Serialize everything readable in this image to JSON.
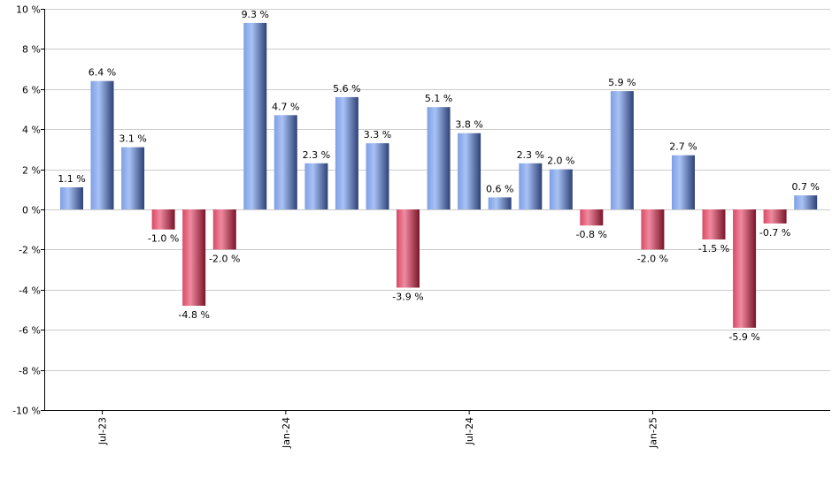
{
  "chart_data": {
    "type": "bar",
    "x": [
      "2023-06",
      "2023-07",
      "2023-08",
      "2023-09",
      "2023-10",
      "2023-11",
      "2023-12",
      "2024-01",
      "2024-02",
      "2024-03",
      "2024-04",
      "2024-05",
      "2024-06",
      "2024-07",
      "2024-08",
      "2024-09",
      "2024-10",
      "2024-11",
      "2024-12",
      "2025-01",
      "2025-02",
      "2025-03",
      "2025-04",
      "2025-05",
      "2025-06"
    ],
    "values": [
      1.1,
      6.4,
      3.1,
      -1.0,
      -4.8,
      -2.0,
      9.3,
      4.7,
      2.3,
      5.6,
      3.3,
      -3.9,
      5.1,
      3.8,
      0.6,
      2.3,
      2.0,
      -0.8,
      5.9,
      -2.0,
      2.7,
      -1.5,
      -5.9,
      -0.7,
      0.7
    ],
    "data_labels": [
      "1.1 %",
      "6.4 %",
      "3.1 %",
      "-1.0 %",
      "-4.8 %",
      "-2.0 %",
      "9.3 %",
      "4.7 %",
      "2.3 %",
      "5.6 %",
      "3.3 %",
      "-3.9 %",
      "5.1 %",
      "3.8 %",
      "0.6 %",
      "2.3 %",
      "2.0 %",
      "-0.8 %",
      "5.9 %",
      "-2.0 %",
      "2.7 %",
      "-1.5 %",
      "-5.9 %",
      "-0.7 %",
      "0.7 %"
    ],
    "y_ticks": [
      10,
      8,
      6,
      4,
      2,
      0,
      -2,
      -4,
      -6,
      -8,
      -10
    ],
    "y_tick_labels": [
      "10 %",
      "8 %",
      "6 %",
      "4 %",
      "2 %",
      "0 %",
      "-2 %",
      "-4 %",
      "-6 %",
      "-8 %",
      "-10 %"
    ],
    "x_tick_labels": [
      {
        "date": "2023-07",
        "label": "Jul-23"
      },
      {
        "date": "2024-01",
        "label": "Jan-24"
      },
      {
        "date": "2024-07",
        "label": "Jul-24"
      },
      {
        "date": "2025-01",
        "label": "Jan-25"
      }
    ],
    "ylim": [
      -10,
      10
    ],
    "grid": true,
    "title": "",
    "xlabel": "",
    "ylabel": "",
    "colors": {
      "positive": "#6f93e0",
      "positive_dark": "#2a3f78",
      "positive_light": "#a9c2f5",
      "negative": "#d4405c",
      "negative_dark": "#7a1428",
      "negative_light": "#f08aa0",
      "grid": "#cccccc",
      "axis": "#000000"
    }
  }
}
